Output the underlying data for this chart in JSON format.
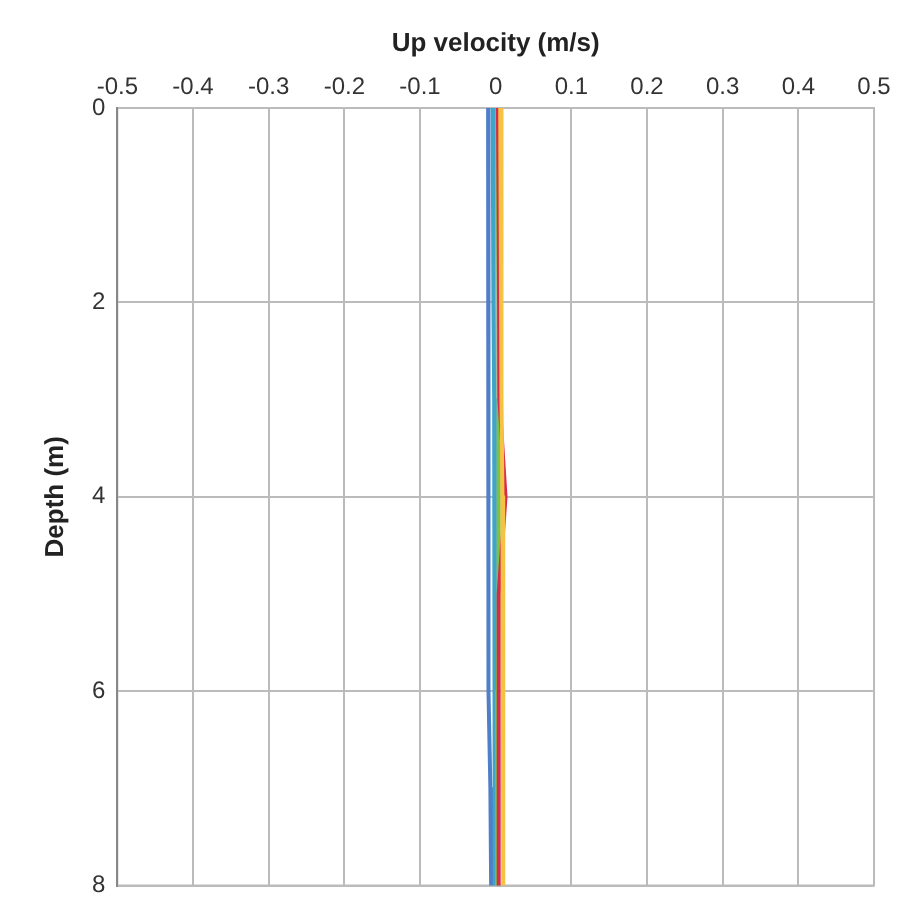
{
  "chart_data": {
    "type": "line",
    "xlabel": "Up velocity (m/s)",
    "ylabel": "Depth (m)",
    "xlim": [
      -0.5,
      0.5
    ],
    "xticks": [
      -0.5,
      -0.4,
      -0.3,
      -0.2,
      -0.1,
      0,
      0.1,
      0.2,
      0.3,
      0.4,
      0.5
    ],
    "ylim": [
      8,
      0
    ],
    "yticks": [
      0,
      2,
      4,
      6,
      8
    ],
    "grid": true,
    "legend": false,
    "marker": "none",
    "series": [
      {
        "color": "#f5c242",
        "x": [
          0.006,
          0.007,
          0.008,
          0.008,
          0.009,
          0.01,
          0.01,
          0.01,
          0.01
        ],
        "values": [
          0,
          1,
          2,
          3,
          4,
          5,
          6,
          7,
          8
        ]
      },
      {
        "color": "#d62a4e",
        "x": [
          0.003,
          0.004,
          0.005,
          0.005,
          0.013,
          0.004,
          0.004,
          0.004,
          0.004
        ],
        "values": [
          0,
          1,
          2,
          3,
          4,
          5,
          6,
          7,
          8
        ]
      },
      {
        "color": "#7cc246",
        "x": [
          0.002,
          0.003,
          0.004,
          0.004,
          0.004,
          0.004,
          0.003,
          0.002,
          0.002
        ],
        "values": [
          0,
          1,
          2,
          3,
          4,
          5,
          6,
          7,
          8
        ]
      },
      {
        "color": "#3fa5c8",
        "x": [
          -0.004,
          -0.003,
          -0.003,
          -0.002,
          -0.002,
          -0.002,
          -0.001,
          -0.001,
          0
        ],
        "values": [
          0,
          1,
          2,
          3,
          4,
          5,
          6,
          7,
          8
        ]
      },
      {
        "color": "#4f7fc8",
        "x": [
          -0.01,
          -0.01,
          -0.01,
          -0.01,
          -0.01,
          -0.009,
          -0.008,
          -0.007,
          -0.006
        ],
        "values": [
          0,
          1,
          2,
          3,
          4,
          5,
          6,
          7,
          8
        ]
      }
    ]
  }
}
